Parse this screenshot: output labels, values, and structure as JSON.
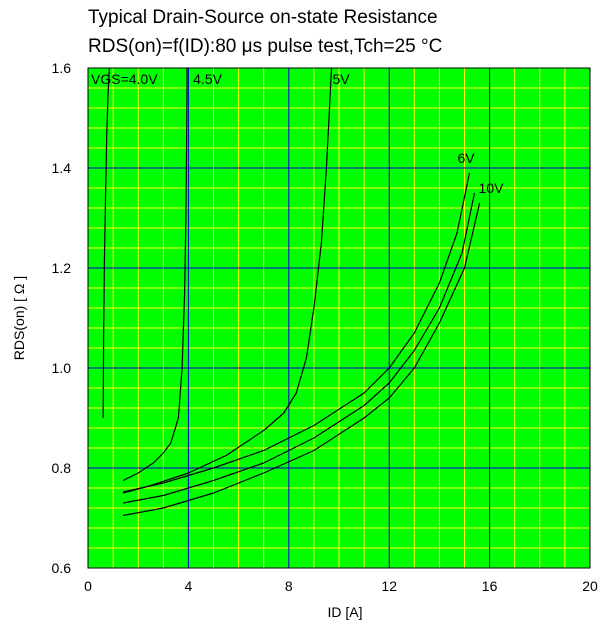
{
  "chart_data": {
    "type": "line",
    "title": "Typical Drain-Source on-state Resistance",
    "subtitle": "RDS(on)=f(ID):80  μs pulse test,Tch=25 °C",
    "xlabel": "ID [A]",
    "ylabel": "RDS(on) [  Ω ]",
    "xlim": [
      0,
      20
    ],
    "ylim": [
      0.6,
      1.6
    ],
    "x_ticks": [
      "0",
      "4",
      "8",
      "12",
      "16",
      "20"
    ],
    "y_ticks": [
      "0.6",
      "0.8",
      "1.0",
      "1.2",
      "1.4",
      "1.6"
    ],
    "grid": true,
    "colors": {
      "background": "#00ff00",
      "minor_grid": "#ffff00",
      "major_grid": "#0000cc",
      "curves": "#000000"
    },
    "series": [
      {
        "name": "VGS=4.0V",
        "x": [
          0.6,
          0.62,
          0.65,
          0.7,
          0.75,
          0.8,
          0.85
        ],
        "y": [
          0.9,
          1.05,
          1.2,
          1.35,
          1.47,
          1.55,
          1.6
        ]
      },
      {
        "name": "4.5V",
        "x": [
          1.4,
          2.0,
          2.6,
          3.0,
          3.3,
          3.6,
          3.75,
          3.85,
          3.9,
          3.93,
          3.95
        ],
        "y": [
          0.775,
          0.79,
          0.81,
          0.83,
          0.85,
          0.9,
          1.0,
          1.15,
          1.3,
          1.45,
          1.6
        ]
      },
      {
        "name": "5V",
        "x": [
          1.4,
          2.5,
          4.0,
          5.5,
          7.0,
          7.8,
          8.3,
          8.7,
          9.0,
          9.3,
          9.5,
          9.6,
          9.7
        ],
        "y": [
          0.75,
          0.765,
          0.79,
          0.825,
          0.875,
          0.91,
          0.95,
          1.02,
          1.12,
          1.25,
          1.4,
          1.5,
          1.6
        ]
      },
      {
        "name": "6V",
        "x": [
          1.4,
          3,
          5,
          7,
          9,
          11,
          12,
          13,
          14,
          14.7,
          15.2
        ],
        "y": [
          0.752,
          0.77,
          0.8,
          0.835,
          0.885,
          0.95,
          1.0,
          1.07,
          1.17,
          1.27,
          1.39
        ]
      },
      {
        "name": "10V",
        "x": [
          1.4,
          3,
          5,
          7,
          9,
          11,
          12,
          13,
          14,
          14.9,
          15.4
        ],
        "y": [
          0.73,
          0.745,
          0.775,
          0.81,
          0.86,
          0.925,
          0.97,
          1.035,
          1.12,
          1.23,
          1.35
        ]
      },
      {
        "name": "",
        "x": [
          1.4,
          3,
          5,
          7,
          9,
          11,
          12,
          13,
          14,
          15.0,
          15.6
        ],
        "y": [
          0.705,
          0.72,
          0.75,
          0.79,
          0.835,
          0.9,
          0.94,
          1.0,
          1.09,
          1.2,
          1.33
        ]
      }
    ]
  }
}
